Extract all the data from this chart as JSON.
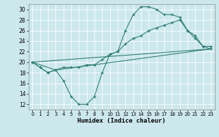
{
  "title": "",
  "xlabel": "Humidex (Indice chaleur)",
  "ylabel": "",
  "background_color": "#cce8ec",
  "grid_color": "#ffffff",
  "line_color": "#2e7d72",
  "xlim": [
    -0.5,
    23.5
  ],
  "ylim": [
    11,
    31
  ],
  "xticks": [
    0,
    1,
    2,
    3,
    4,
    5,
    6,
    7,
    8,
    9,
    10,
    11,
    12,
    13,
    14,
    15,
    16,
    17,
    18,
    19,
    20,
    21,
    22,
    23
  ],
  "yticks": [
    12,
    14,
    16,
    18,
    20,
    22,
    24,
    26,
    28,
    30
  ],
  "line1_x": [
    0,
    1,
    2,
    3,
    4,
    5,
    6,
    7,
    8,
    9,
    10,
    11,
    12,
    13,
    14,
    15,
    16,
    17,
    18,
    19,
    20,
    21,
    22,
    23
  ],
  "line1_y": [
    20,
    19,
    18,
    18.5,
    16.5,
    13.5,
    12,
    12,
    13.5,
    18,
    21.5,
    22,
    26,
    29,
    30.5,
    30.5,
    30,
    29,
    29,
    28.5,
    26,
    25,
    23,
    23
  ],
  "line2_x": [
    0,
    1,
    2,
    3,
    4,
    5,
    6,
    7,
    8,
    9,
    10,
    11,
    12,
    13,
    14,
    15,
    16,
    17,
    18,
    19,
    20,
    21,
    22,
    23
  ],
  "line2_y": [
    20,
    19,
    18,
    18.5,
    19,
    19,
    19,
    19.5,
    19.5,
    20.5,
    21.5,
    22,
    23.5,
    24.5,
    25,
    26,
    26.5,
    27,
    27.5,
    28,
    26,
    24.5,
    23,
    22.5
  ],
  "line3_x": [
    0,
    23
  ],
  "line3_y": [
    20,
    22.5
  ],
  "line4_x": [
    0,
    3,
    23
  ],
  "line4_y": [
    20,
    18.5,
    22.5
  ],
  "figsize": [
    3.2,
    2.0
  ],
  "dpi": 100
}
